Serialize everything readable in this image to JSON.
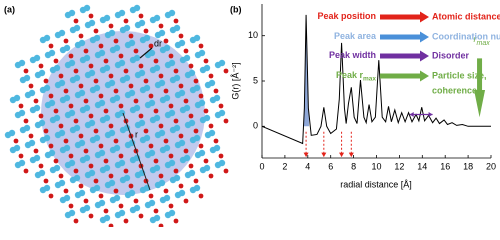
{
  "panel_a": {
    "label": "(a)",
    "dr": "dr",
    "r": "r"
  },
  "chart_data": {
    "type": "line",
    "panel_label": "(b)",
    "x_label": "radial distance [Å]",
    "y_label": "G(r) [Å⁻²]",
    "xlim": [
      0,
      20
    ],
    "xticks": [
      0,
      2,
      4,
      6,
      8,
      10,
      12,
      14,
      16,
      18,
      20
    ],
    "ylim": [
      -3.5,
      13.5
    ],
    "yticks": [
      0,
      5,
      10
    ],
    "color": "#000000",
    "x": [
      0,
      3.55,
      3.7,
      3.85,
      4.05,
      4.3,
      4.8,
      5.15,
      5.4,
      5.65,
      6.0,
      6.5,
      6.75,
      6.95,
      7.2,
      7.35,
      7.55,
      7.8,
      8.05,
      8.3,
      8.6,
      8.9,
      9.1,
      9.35,
      9.6,
      9.9,
      10.2,
      10.5,
      10.8,
      11.05,
      11.3,
      11.6,
      11.9,
      12.2,
      12.5,
      12.8,
      13.1,
      13.45,
      13.7,
      13.95,
      14.2,
      14.55,
      14.9,
      15.2,
      15.5,
      15.9,
      16.2,
      16.6,
      17,
      17.5,
      18,
      20
    ],
    "values": [
      0,
      -1.9,
      2,
      12.3,
      2,
      -1.0,
      -0.9,
      0,
      2.1,
      0,
      -0.8,
      -0.3,
      3,
      9.2,
      2,
      0.3,
      2.5,
      4.3,
      1,
      0.3,
      5.1,
      1,
      0.4,
      2.4,
      0.5,
      1,
      7.3,
      1,
      0.5,
      2.2,
      0.5,
      1.8,
      0.4,
      1.5,
      0.5,
      1.5,
      0.5,
      1.3,
      0.6,
      2.1,
      0.6,
      1.2,
      0.4,
      0.9,
      0.3,
      0.7,
      0.2,
      0.4,
      0.1,
      0.2,
      0,
      0
    ],
    "shaded_range": [
      3.6,
      4.1
    ],
    "shade_color": "#8fa8d8",
    "peak_markers": [
      3.85,
      5.4,
      6.95,
      7.8
    ],
    "width_marker": {
      "x": [
        12.9,
        14.9
      ],
      "y": 1.3,
      "color": "#7030a0"
    },
    "rmax": {
      "x": 19,
      "label": "r",
      "sub": "max",
      "color": "#70ad47"
    },
    "annotations": [
      {
        "text": "Peak position",
        "results": [
          "Atomic distances"
        ],
        "color": "#e2231a",
        "text_color": "#e2231a"
      },
      {
        "text": "Peak area",
        "results": [
          "Coordination number"
        ],
        "color": "#4a90d9",
        "text_color": "#8fb3e0"
      },
      {
        "text": "Peak width",
        "results": [
          "Disorder"
        ],
        "color": "#7030a0",
        "text_color": "#7030a0"
      },
      {
        "text": "Peak r",
        "sub": "max",
        "results": [
          "Particle size,",
          "coherence"
        ],
        "color": "#70ad47",
        "text_color": "#70ad47"
      }
    ]
  }
}
